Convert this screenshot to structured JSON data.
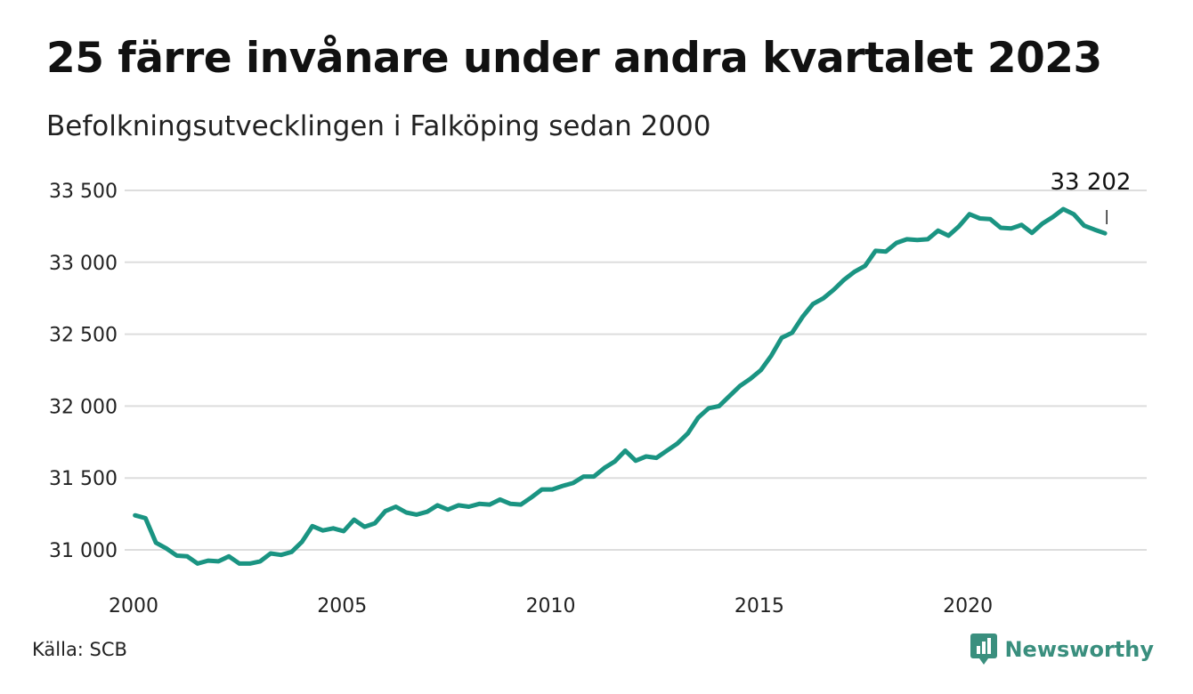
{
  "title": "25 färre invånare under andra kvartalet 2023",
  "subtitle": "Befolkningsutvecklingen i Falköping sedan 2000",
  "source": "Källa: SCB",
  "brand": {
    "name": "Newsworthy",
    "icon": "bar-chart-speech-icon"
  },
  "colors": {
    "line": "#1a9482",
    "grid": "#dddddd",
    "brand": "#3a8f7e"
  },
  "chart_data": {
    "type": "line",
    "title": "25 färre invånare under andra kvartalet 2023",
    "subtitle": "Befolkningsutvecklingen i Falköping sedan 2000",
    "xlabel": "",
    "ylabel": "",
    "xlim": [
      2000,
      2024.5
    ],
    "ylim": [
      30800,
      33500
    ],
    "grid": true,
    "yticks": [
      31000,
      31500,
      32000,
      32500,
      33000,
      33500
    ],
    "ytick_labels": [
      "31 000",
      "31 500",
      "32 000",
      "32 500",
      "33 000",
      "33 500"
    ],
    "xticks": [
      2000,
      2005,
      2010,
      2015,
      2020
    ],
    "xtick_labels": [
      "2000",
      "2005",
      "2010",
      "2015",
      "2020"
    ],
    "annotation": {
      "label": "33 202",
      "x": 2023.5,
      "y": 33202
    },
    "series": [
      {
        "values": [
          [
            2000.25,
            31240
          ],
          [
            2000.5,
            31220
          ],
          [
            2000.75,
            31050
          ],
          [
            2001.0,
            31010
          ],
          [
            2001.25,
            30960
          ],
          [
            2001.5,
            30955
          ],
          [
            2001.75,
            30905
          ],
          [
            2002.0,
            30925
          ],
          [
            2002.25,
            30920
          ],
          [
            2002.5,
            30955
          ],
          [
            2002.75,
            30905
          ],
          [
            2003.0,
            30905
          ],
          [
            2003.25,
            30920
          ],
          [
            2003.5,
            30975
          ],
          [
            2003.75,
            30965
          ],
          [
            2004.0,
            30985
          ],
          [
            2004.25,
            31055
          ],
          [
            2004.5,
            31165
          ],
          [
            2004.75,
            31135
          ],
          [
            2005.0,
            31150
          ],
          [
            2005.25,
            31130
          ],
          [
            2005.5,
            31210
          ],
          [
            2005.75,
            31160
          ],
          [
            2006.0,
            31185
          ],
          [
            2006.25,
            31270
          ],
          [
            2006.5,
            31300
          ],
          [
            2006.75,
            31260
          ],
          [
            2007.0,
            31245
          ],
          [
            2007.25,
            31265
          ],
          [
            2007.5,
            31310
          ],
          [
            2007.75,
            31280
          ],
          [
            2008.0,
            31310
          ],
          [
            2008.25,
            31300
          ],
          [
            2008.5,
            31320
          ],
          [
            2008.75,
            31315
          ],
          [
            2009.0,
            31350
          ],
          [
            2009.25,
            31320
          ],
          [
            2009.5,
            31315
          ],
          [
            2009.75,
            31365
          ],
          [
            2010.0,
            31420
          ],
          [
            2010.25,
            31420
          ],
          [
            2010.5,
            31445
          ],
          [
            2010.75,
            31465
          ],
          [
            2011.0,
            31510
          ],
          [
            2011.25,
            31510
          ],
          [
            2011.5,
            31570
          ],
          [
            2011.75,
            31615
          ],
          [
            2012.0,
            31690
          ],
          [
            2012.25,
            31620
          ],
          [
            2012.5,
            31650
          ],
          [
            2012.75,
            31640
          ],
          [
            2013.0,
            31690
          ],
          [
            2013.25,
            31740
          ],
          [
            2013.5,
            31810
          ],
          [
            2013.75,
            31920
          ],
          [
            2014.0,
            31985
          ],
          [
            2014.25,
            32000
          ],
          [
            2014.5,
            32070
          ],
          [
            2014.75,
            32140
          ],
          [
            2015.0,
            32190
          ],
          [
            2015.25,
            32250
          ],
          [
            2015.5,
            32350
          ],
          [
            2015.75,
            32475
          ],
          [
            2016.0,
            32510
          ],
          [
            2016.25,
            32620
          ],
          [
            2016.5,
            32710
          ],
          [
            2016.75,
            32750
          ],
          [
            2017.0,
            32810
          ],
          [
            2017.25,
            32880
          ],
          [
            2017.5,
            32935
          ],
          [
            2017.75,
            32975
          ],
          [
            2018.0,
            33080
          ],
          [
            2018.25,
            33075
          ],
          [
            2018.5,
            33135
          ],
          [
            2018.75,
            33160
          ],
          [
            2019.0,
            33155
          ],
          [
            2019.25,
            33160
          ],
          [
            2019.5,
            33220
          ],
          [
            2019.75,
            33185
          ],
          [
            2020.0,
            33250
          ],
          [
            2020.25,
            33335
          ],
          [
            2020.5,
            33305
          ],
          [
            2020.75,
            33300
          ],
          [
            2021.0,
            33240
          ],
          [
            2021.25,
            33235
          ],
          [
            2021.5,
            33260
          ],
          [
            2021.75,
            33205
          ],
          [
            2022.0,
            33270
          ],
          [
            2022.25,
            33315
          ],
          [
            2022.5,
            33370
          ],
          [
            2022.75,
            33335
          ],
          [
            2023.0,
            33255
          ],
          [
            2023.25,
            33227
          ],
          [
            2023.5,
            33202
          ]
        ]
      }
    ]
  }
}
